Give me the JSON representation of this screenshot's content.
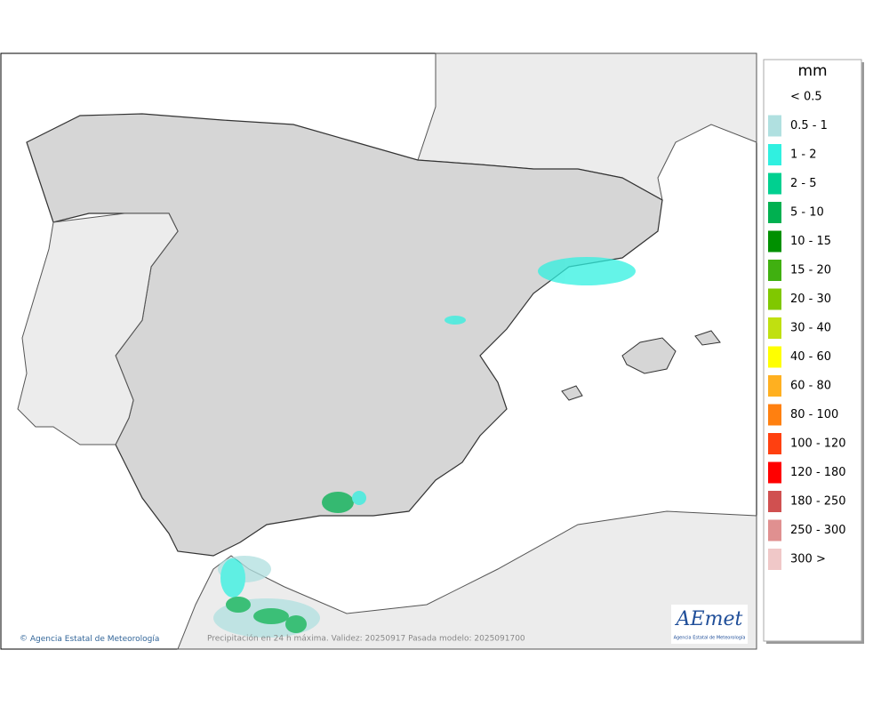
{
  "legend": {
    "title": "mm",
    "entries": [
      {
        "label": "< 0.5"
      },
      {
        "label": "0.5 - 1",
        "color": "#b0e0e0"
      },
      {
        "label": "1 - 2",
        "color": "#30f0e0"
      },
      {
        "label": "2 - 5",
        "color": "#00d090"
      },
      {
        "label": "5 - 10",
        "color": "#00b050"
      },
      {
        "label": "10 - 15",
        "color": "#009000"
      },
      {
        "label": "15 - 20",
        "color": "#40b010"
      },
      {
        "label": "20 - 30",
        "color": "#80c800"
      },
      {
        "label": "30 - 40",
        "color": "#c0e010"
      },
      {
        "label": "40 - 60",
        "color": "#ffff00"
      },
      {
        "label": "60 - 80",
        "color": "#ffb020"
      },
      {
        "label": "80 - 100",
        "color": "#ff8010"
      },
      {
        "label": "100 - 120",
        "color": "#ff4010"
      },
      {
        "label": "120 - 180",
        "color": "#ff0000"
      },
      {
        "label": "180 - 250",
        "color": "#d05050"
      },
      {
        "label": "250 - 300",
        "color": "#e09090"
      },
      {
        "label": "300 >",
        "color": "#f0c8c8"
      }
    ]
  },
  "footer": {
    "credit": "Agencia Estatal de Meteorología",
    "caption": "Precipitación en 24 h máxima. Validez: 20250917 Pasada modelo: 2025091700"
  },
  "logo": {
    "name": "AEmet",
    "subtitle": "Agencia Estatal de Meteorología"
  }
}
